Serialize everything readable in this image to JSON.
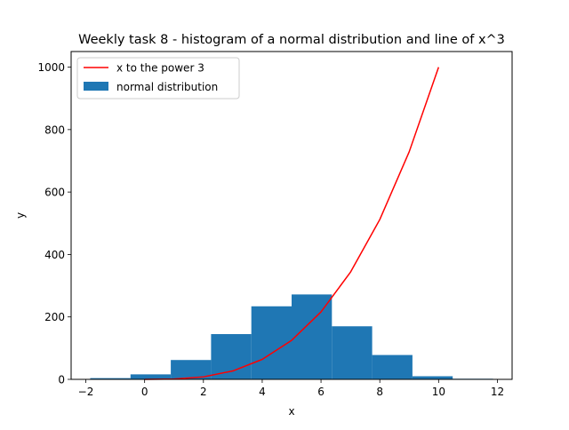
{
  "chart_data": {
    "type": "bar",
    "title": "Weekly task 8 - histogram of a normal distribution and line of x^3",
    "xlabel": "x",
    "ylabel": "y",
    "xlim": [
      -2.5,
      12.5
    ],
    "ylim": [
      0,
      1050
    ],
    "xticks": [
      -2,
      0,
      2,
      4,
      6,
      8,
      10,
      12
    ],
    "yticks": [
      0,
      200,
      400,
      600,
      800,
      1000
    ],
    "xtick_labels": [
      "−2",
      "0",
      "2",
      "4",
      "6",
      "8",
      "10",
      "12"
    ],
    "ytick_labels": [
      "0",
      "200",
      "400",
      "600",
      "800",
      "1000"
    ],
    "legend_position": "top-left",
    "series": [
      {
        "name": "x to the power 3",
        "kind": "line",
        "color": "#ff0000",
        "x": [
          0,
          1,
          2,
          3,
          4,
          5,
          6,
          7,
          8,
          9,
          10
        ],
        "y": [
          0,
          1,
          8,
          27,
          64,
          125,
          216,
          343,
          512,
          729,
          1000
        ]
      },
      {
        "name": "normal distribution",
        "kind": "histogram",
        "color": "#1f77b4",
        "bin_edges": [
          -1.85,
          -0.48,
          0.89,
          2.26,
          3.63,
          5.0,
          6.37,
          7.74,
          9.11,
          10.48,
          11.85
        ],
        "counts": [
          4,
          16,
          62,
          145,
          234,
          272,
          170,
          78,
          10,
          2
        ]
      }
    ]
  }
}
